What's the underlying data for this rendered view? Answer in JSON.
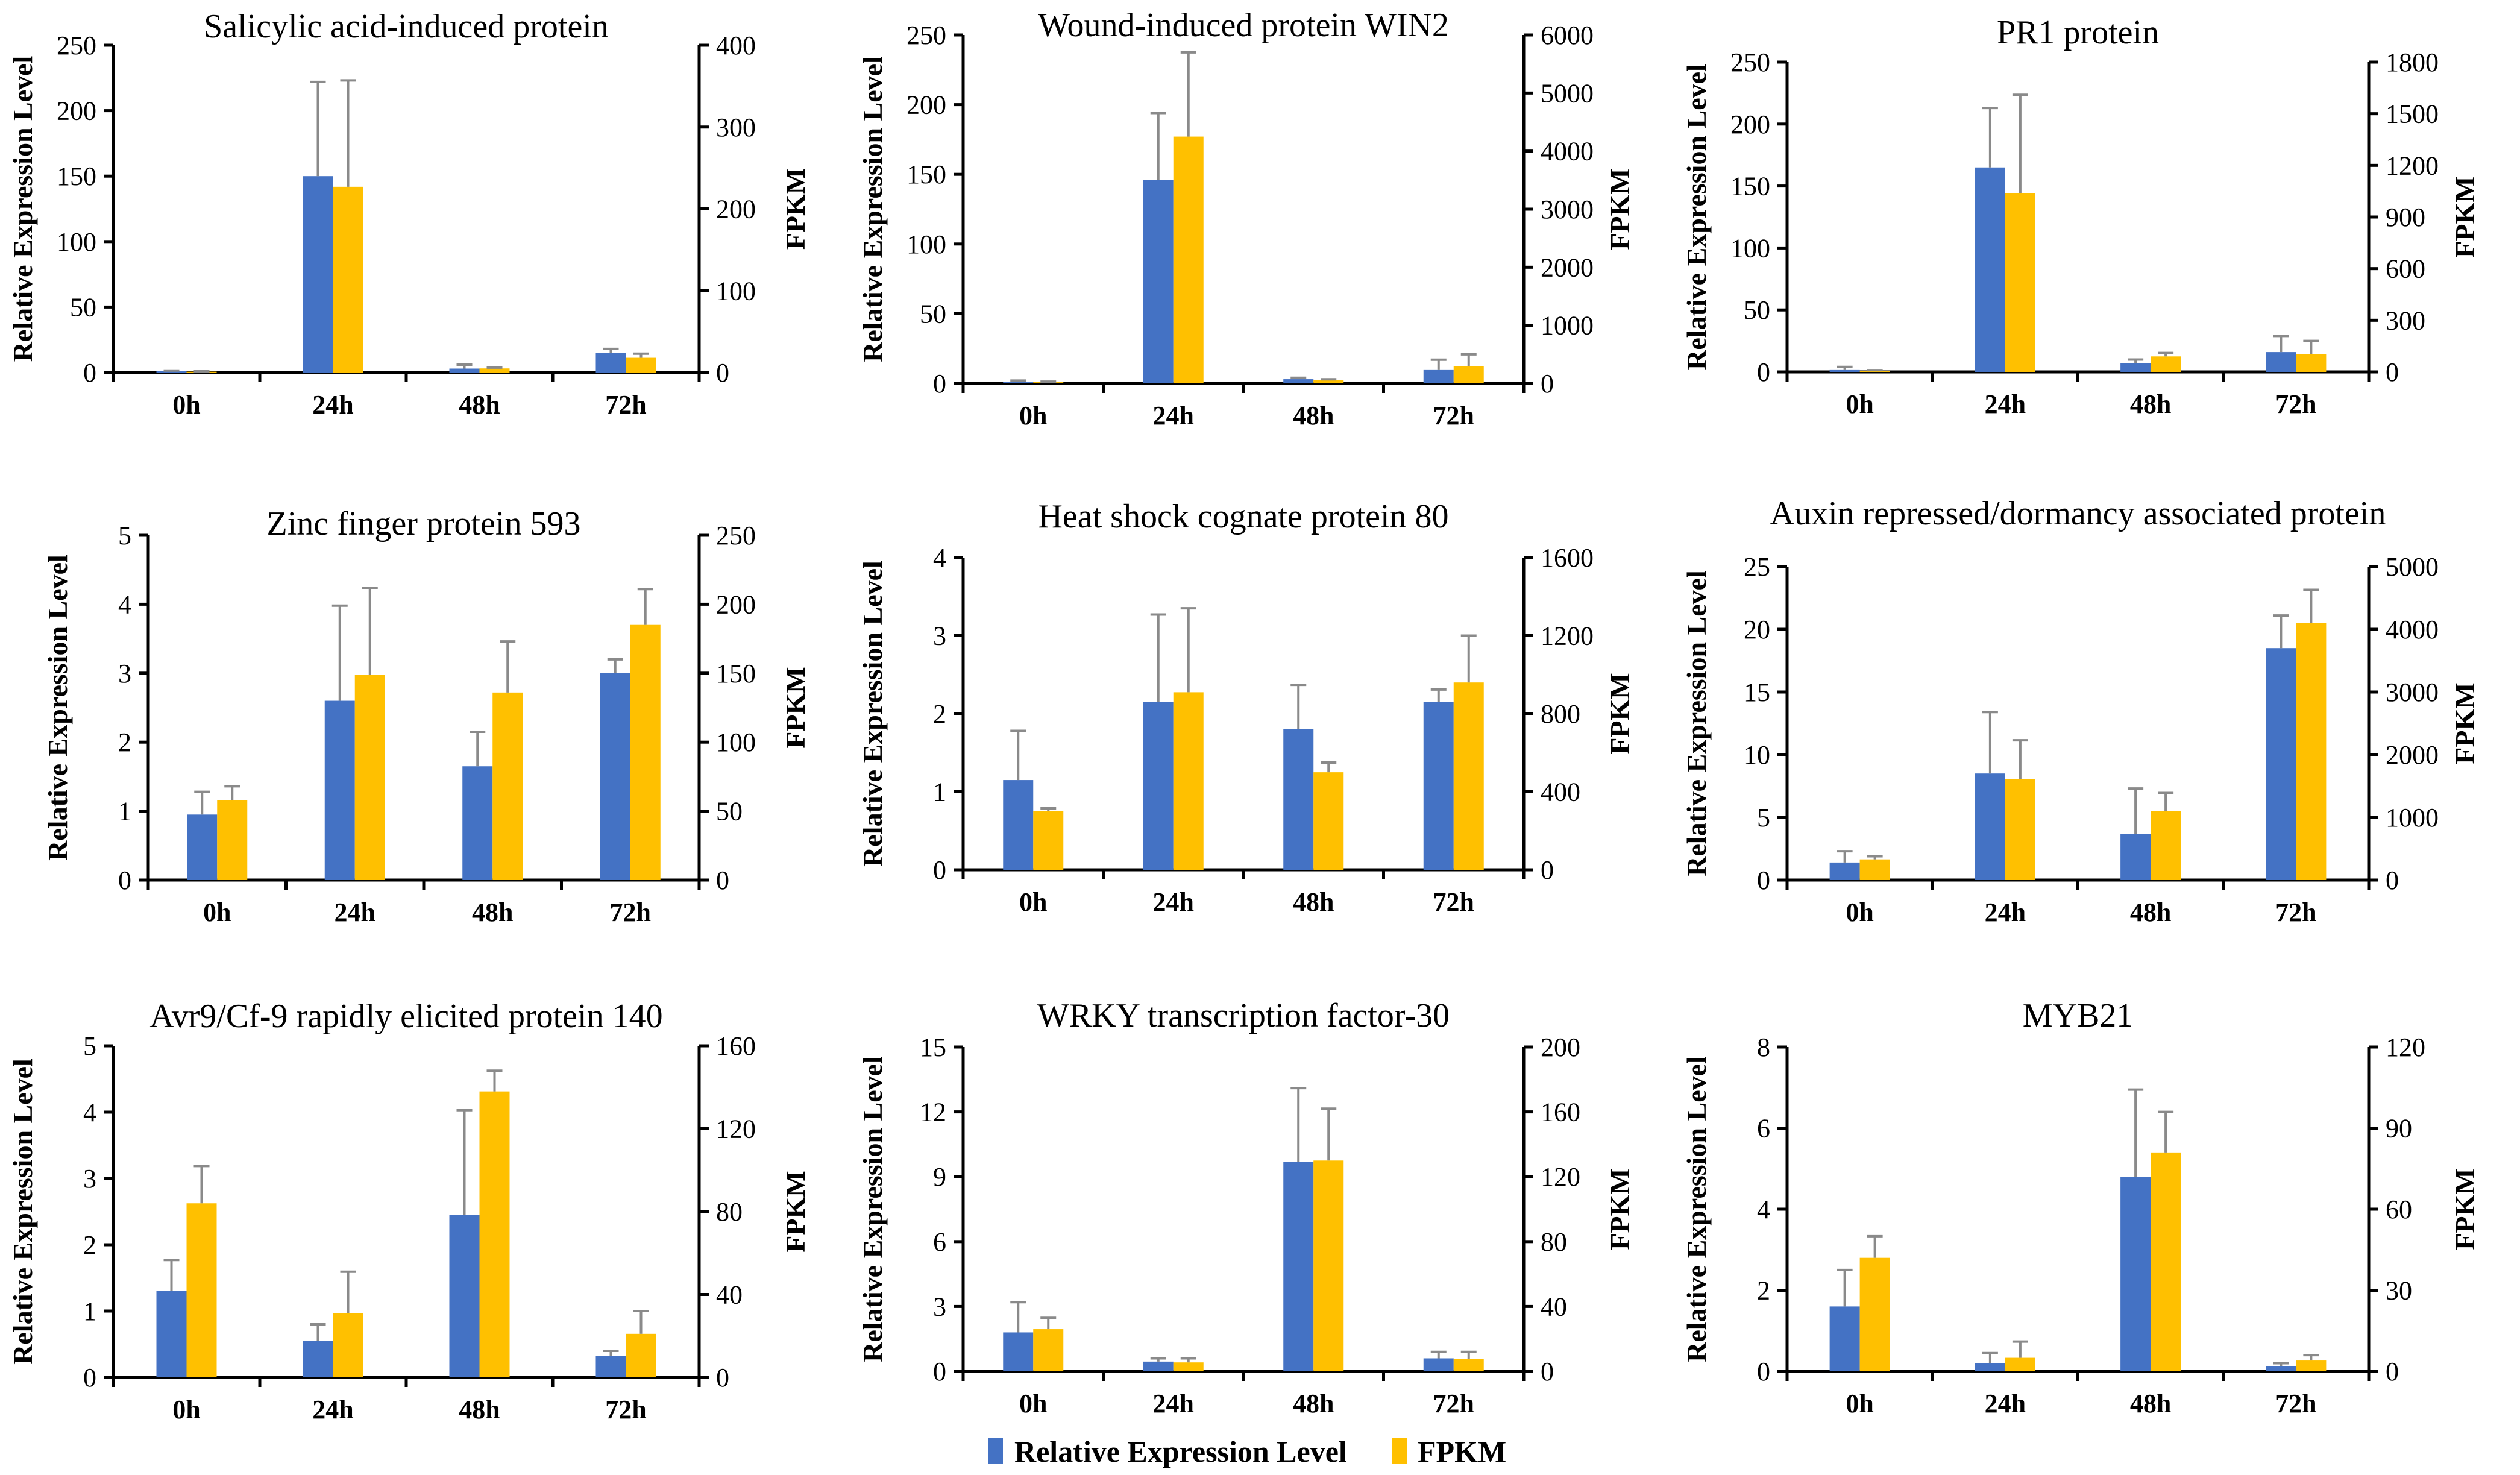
{
  "colors": {
    "rel": "#4472C4",
    "fpkm": "#FFC000",
    "error": "#8a8a8a",
    "axis": "#000000"
  },
  "legend": {
    "rel_label": "Relative Expression Level",
    "fpkm_label": "FPKM"
  },
  "chart_data": [
    {
      "type": "bar",
      "title": "Salicylic acid-induced protein",
      "categories": [
        "0h",
        "24h",
        "48h",
        "72h"
      ],
      "ylabel": "Relative Expression Level",
      "y2label": "FPKM",
      "ylim": [
        0,
        250
      ],
      "yticks": [
        0,
        50,
        100,
        150,
        200,
        250
      ],
      "y2lim": [
        0,
        400
      ],
      "y2ticks": [
        0,
        100,
        200,
        300,
        400
      ],
      "series": [
        {
          "name": "Relative Expression Level",
          "axis": "left",
          "values": [
            1,
            150,
            3,
            15
          ],
          "errors": [
            0.5,
            72,
            3,
            3
          ]
        },
        {
          "name": "FPKM",
          "axis": "right",
          "values": [
            1,
            227,
            5,
            18
          ],
          "errors": [
            0.5,
            130,
            1,
            5
          ]
        }
      ]
    },
    {
      "type": "bar",
      "title": "Wound-induced  protein WIN2",
      "categories": [
        "0h",
        "24h",
        "48h",
        "72h"
      ],
      "ylabel": "Relative Expression Level",
      "y2label": "FPKM",
      "ylim": [
        0,
        250
      ],
      "yticks": [
        0,
        50,
        100,
        150,
        200,
        250
      ],
      "y2lim": [
        0,
        6000
      ],
      "y2ticks": [
        0,
        1000,
        2000,
        3000,
        4000,
        5000,
        6000
      ],
      "series": [
        {
          "name": "Relative Expression Level",
          "axis": "left",
          "values": [
            1,
            146,
            3,
            10
          ],
          "errors": [
            1,
            48,
            1,
            7
          ]
        },
        {
          "name": "FPKM",
          "axis": "right",
          "values": [
            20,
            4250,
            60,
            300
          ],
          "errors": [
            10,
            1450,
            10,
            200
          ]
        }
      ]
    },
    {
      "type": "bar",
      "title": "PR1 protein",
      "categories": [
        "0h",
        "24h",
        "48h",
        "72h"
      ],
      "ylabel": "Relative Expression Level",
      "y2label": "FPKM",
      "ylim": [
        0,
        250
      ],
      "yticks": [
        0,
        50,
        100,
        150,
        200,
        250
      ],
      "y2lim": [
        0,
        1800
      ],
      "y2ticks": [
        0,
        300,
        600,
        900,
        1200,
        1500,
        1800
      ],
      "series": [
        {
          "name": "Relative Expression Level",
          "axis": "left",
          "values": [
            2,
            165,
            7,
            16
          ],
          "errors": [
            2,
            48,
            3,
            13
          ]
        },
        {
          "name": "FPKM",
          "axis": "right",
          "values": [
            5,
            1040,
            90,
            105
          ],
          "errors": [
            5,
            570,
            20,
            75
          ]
        }
      ]
    },
    {
      "type": "bar",
      "title": "Zinc  finger  protein 593",
      "categories": [
        "0h",
        "24h",
        "48h",
        "72h"
      ],
      "ylabel": "Relative Expression Level",
      "y2label": "FPKM",
      "ylim": [
        0,
        5
      ],
      "yticks": [
        0,
        1,
        2,
        3,
        4,
        5
      ],
      "y2lim": [
        0,
        250
      ],
      "y2ticks": [
        0,
        50,
        100,
        150,
        200,
        250
      ],
      "series": [
        {
          "name": "Relative Expression Level",
          "axis": "left",
          "values": [
            0.95,
            2.6,
            1.65,
            3.0
          ],
          "errors": [
            0.33,
            1.38,
            0.5,
            0.2
          ]
        },
        {
          "name": "FPKM",
          "axis": "right",
          "values": [
            58,
            149,
            136,
            185
          ],
          "errors": [
            10,
            63,
            37,
            26
          ]
        }
      ]
    },
    {
      "type": "bar",
      "title": "Heat shock cognate protein 80",
      "categories": [
        "0h",
        "24h",
        "48h",
        "72h"
      ],
      "ylabel": "Relative Expression Level",
      "y2label": "FPKM",
      "ylim": [
        0,
        4
      ],
      "yticks": [
        0,
        1,
        2,
        3,
        4
      ],
      "y2lim": [
        0,
        1600
      ],
      "y2ticks": [
        0,
        400,
        800,
        1200,
        1600
      ],
      "series": [
        {
          "name": "Relative Expression Level",
          "axis": "left",
          "values": [
            1.15,
            2.15,
            1.8,
            2.15
          ],
          "errors": [
            0.63,
            1.12,
            0.57,
            0.16
          ]
        },
        {
          "name": "FPKM",
          "axis": "right",
          "values": [
            300,
            910,
            500,
            960
          ],
          "errors": [
            15,
            430,
            50,
            240
          ]
        }
      ]
    },
    {
      "type": "bar",
      "title": "Auxin repressed/dormancy associated protein",
      "categories": [
        "0h",
        "24h",
        "48h",
        "72h"
      ],
      "ylabel": "Relative Expression Level",
      "y2label": "FPKM",
      "ylim": [
        0,
        25
      ],
      "yticks": [
        0,
        5,
        10,
        15,
        20,
        25
      ],
      "y2lim": [
        0,
        5000
      ],
      "y2ticks": [
        0,
        1000,
        2000,
        3000,
        4000,
        5000
      ],
      "series": [
        {
          "name": "Relative Expression Level",
          "axis": "left",
          "values": [
            1.4,
            8.5,
            3.7,
            18.5
          ],
          "errors": [
            0.9,
            4.9,
            3.6,
            2.6
          ]
        },
        {
          "name": "FPKM",
          "axis": "right",
          "values": [
            330,
            1610,
            1100,
            4100
          ],
          "errors": [
            50,
            620,
            290,
            530
          ]
        }
      ]
    },
    {
      "type": "bar",
      "title": "Avr9/Cf-9 rapidly elicited protein 140",
      "categories": [
        "0h",
        "24h",
        "48h",
        "72h"
      ],
      "ylabel": "Relative Expression Level",
      "y2label": "FPKM",
      "ylim": [
        0,
        5
      ],
      "yticks": [
        0,
        1,
        2,
        3,
        4,
        5
      ],
      "y2lim": [
        0,
        160
      ],
      "y2ticks": [
        0,
        40,
        80,
        120,
        160
      ],
      "series": [
        {
          "name": "Relative Expression Level",
          "axis": "left",
          "values": [
            1.3,
            0.55,
            2.45,
            0.32
          ],
          "errors": [
            0.47,
            0.25,
            1.58,
            0.08
          ]
        },
        {
          "name": "FPKM",
          "axis": "right",
          "values": [
            84,
            31,
            138,
            21
          ],
          "errors": [
            18,
            20,
            10,
            11
          ]
        }
      ]
    },
    {
      "type": "bar",
      "title": "WRKY transcription factor-30",
      "categories": [
        "0h",
        "24h",
        "48h",
        "72h"
      ],
      "ylabel": "Relative Expression Level",
      "y2label": "FPKM",
      "ylim": [
        0,
        15
      ],
      "yticks": [
        0,
        3,
        6,
        9,
        12,
        15
      ],
      "y2lim": [
        0,
        200
      ],
      "y2ticks": [
        0,
        40,
        80,
        120,
        160,
        200
      ],
      "series": [
        {
          "name": "Relative Expression Level",
          "axis": "left",
          "values": [
            1.8,
            0.45,
            9.7,
            0.6
          ],
          "errors": [
            1.4,
            0.15,
            3.4,
            0.3
          ]
        },
        {
          "name": "FPKM",
          "axis": "right",
          "values": [
            26,
            5.5,
            130,
            7.5
          ],
          "errors": [
            7,
            2.5,
            32,
            4.5
          ]
        }
      ]
    },
    {
      "type": "bar",
      "title": "MYB21",
      "categories": [
        "0h",
        "24h",
        "48h",
        "72h"
      ],
      "ylabel": "Relative Expression Level",
      "y2label": "FPKM",
      "ylim": [
        0,
        8
      ],
      "yticks": [
        0,
        2,
        4,
        6,
        8
      ],
      "y2lim": [
        0,
        120
      ],
      "y2ticks": [
        0,
        30,
        60,
        90,
        120
      ],
      "series": [
        {
          "name": "Relative Expression Level",
          "axis": "left",
          "values": [
            1.6,
            0.2,
            4.8,
            0.12
          ],
          "errors": [
            0.9,
            0.25,
            2.15,
            0.08
          ]
        },
        {
          "name": "FPKM",
          "axis": "right",
          "values": [
            42,
            5,
            81,
            4
          ],
          "errors": [
            8,
            6,
            15,
            2
          ]
        }
      ]
    }
  ]
}
